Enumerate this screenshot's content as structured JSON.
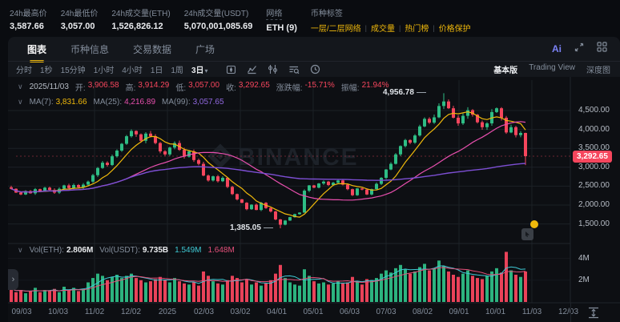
{
  "stats_bar": {
    "items": [
      {
        "label": "24h最高价",
        "value": "3,587.66"
      },
      {
        "label": "24h最低价",
        "value": "3,057.00"
      },
      {
        "label": "24h成交量(ETH)",
        "value": "1,526,826.12"
      },
      {
        "label": "24h成交量(USDT)",
        "value": "5,070,001,085.69"
      },
      {
        "label": "网络",
        "value": "ETH (9)"
      }
    ],
    "tags": {
      "label": "币种标签",
      "links": [
        "一层/二层网络",
        "成交量",
        "热门榜",
        "价格保护"
      ]
    }
  },
  "tabs": {
    "items": [
      "图表",
      "币种信息",
      "交易数据",
      "广场"
    ],
    "active": "图表",
    "ai_label": "Ai"
  },
  "toolbar": {
    "intervals": [
      "分时",
      "1秒",
      "15分钟",
      "1小时",
      "4小时",
      "1日",
      "1周"
    ],
    "selected_interval": "3日",
    "views": [
      "基本版",
      "Trading View",
      "深度图"
    ],
    "active_view": "基本版"
  },
  "legend": {
    "price_row": {
      "date": "2025/11/03",
      "items": [
        {
          "label": "开:",
          "value": "3,906.58"
        },
        {
          "label": "高:",
          "value": "3,914.29"
        },
        {
          "label": "低:",
          "value": "3,057.00"
        },
        {
          "label": "收:",
          "value": "3,292.65"
        },
        {
          "label": "涨跌幅:",
          "value": "-15.71%"
        },
        {
          "label": "振幅:",
          "value": "21.94%"
        }
      ]
    },
    "ma_row": {
      "items": [
        {
          "label": "MA(7):",
          "value": "3,831.66"
        },
        {
          "label": "MA(25):",
          "value": "4,216.89"
        },
        {
          "label": "MA(99):",
          "value": "3,057.65"
        }
      ]
    },
    "vol_row": {
      "pairs": [
        {
          "label": "Vol(ETH):",
          "value": "2.806M"
        },
        {
          "label": "Vol(USDT):",
          "value": "9.735B"
        }
      ],
      "ma_values": [
        "1.549M",
        "1.648M"
      ]
    }
  },
  "chart_data": {
    "type": "candlestick",
    "interval": "3日",
    "x_labels": [
      "09/03",
      "10/03",
      "11/02",
      "12/02",
      "2025",
      "02/03",
      "03/02",
      "04/01",
      "05/01",
      "06/03",
      "07/03",
      "08/02",
      "09/01",
      "10/01",
      "11/03",
      "12/03"
    ],
    "price_ticks": [
      4500,
      4000,
      3500,
      3000,
      2500,
      2000,
      1500
    ],
    "price_tick_labels": [
      "4,500.00",
      "4,000.00",
      "3,500.00",
      "3,000.00",
      "2,500.00",
      "2,000.00",
      "1,500.00"
    ],
    "volume_ticks": [
      {
        "v": 4,
        "label": "4M"
      },
      {
        "v": 2,
        "label": "2M"
      }
    ],
    "current_price": {
      "value": 3292.65,
      "label": "3,292.65"
    },
    "annotations": {
      "high": {
        "index": 90,
        "value": 4956.78,
        "label": "4,956.78"
      },
      "low": {
        "index": 56,
        "value": 1385.05,
        "label": "1,385.05"
      }
    },
    "first_open": 2470,
    "closes": [
      2430,
      2330,
      2280,
      2370,
      2310,
      2420,
      2370,
      2460,
      2400,
      2330,
      2430,
      2520,
      2450,
      2530,
      2470,
      2540,
      2620,
      2790,
      2980,
      3120,
      3060,
      3290,
      3440,
      3620,
      3820,
      3960,
      3870,
      3700,
      3890,
      3820,
      3640,
      3420,
      3340,
      3520,
      3640,
      3460,
      3280,
      3420,
      3190,
      3090,
      2780,
      2650,
      2760,
      2630,
      2720,
      2480,
      2290,
      2150,
      2060,
      1890,
      2010,
      1870,
      2060,
      1920,
      1830,
      1620,
      1480,
      1590,
      1680,
      1760,
      1800,
      2380,
      2520,
      2460,
      2570,
      2620,
      2530,
      2590,
      2650,
      2540,
      2420,
      2260,
      2440,
      2410,
      2280,
      2420,
      2560,
      2720,
      2940,
      3090,
      3340,
      3560,
      3720,
      3650,
      3840,
      4080,
      4280,
      4180,
      4320,
      4620,
      4740,
      4560,
      4310,
      4160,
      4360,
      4510,
      4390,
      4190,
      4060,
      4160,
      4460,
      4560,
      4310,
      3920,
      4060,
      3850,
      3906.58,
      3292.65
    ],
    "volumes": [
      1.2,
      0.9,
      1.1,
      0.8,
      1.0,
      1.3,
      0.9,
      1.1,
      1.0,
      1.2,
      0.9,
      1.4,
      1.1,
      1.3,
      1.0,
      1.2,
      1.8,
      2.2,
      2.6,
      2.4,
      2.0,
      2.3,
      2.5,
      2.2,
      2.4,
      2.6,
      2.2,
      2.0,
      1.8,
      1.9,
      2.1,
      2.3,
      2.0,
      1.8,
      2.2,
      1.9,
      1.7,
      1.6,
      1.8,
      1.5,
      2.8,
      2.4,
      1.9,
      1.7,
      1.6,
      2.0,
      2.4,
      2.2,
      1.8,
      2.1,
      1.6,
      1.8,
      1.5,
      1.7,
      2.0,
      2.6,
      3.4,
      2.2,
      1.8,
      1.6,
      1.5,
      3.0,
      2.4,
      1.9,
      1.7,
      1.8,
      1.6,
      1.7,
      1.9,
      1.7,
      1.8,
      2.3,
      1.9,
      1.6,
      2.1,
      2.0,
      2.2,
      2.6,
      2.9,
      2.7,
      3.1,
      3.4,
      3.0,
      2.6,
      2.8,
      3.2,
      3.5,
      2.9,
      3.1,
      3.8,
      3.3,
      2.8,
      2.5,
      2.3,
      2.6,
      2.9,
      2.4,
      2.2,
      2.1,
      2.4,
      2.8,
      3.1,
      2.7,
      4.6,
      2.9,
      2.5,
      2.3,
      2.8
    ],
    "last_candle": {
      "open": 3906.58,
      "high": 3914.29,
      "low": 3057.0,
      "close": 3292.65
    },
    "ma_windows": [
      7,
      25,
      99
    ],
    "colors": {
      "up": "#2ebd85",
      "down": "#f6465d",
      "ma7": "#f0b90b",
      "ma25": "#e84fae",
      "ma99": "#7d4fd4",
      "vol_ma1": "#3fc9d4",
      "vol_ma2": "#e4507a",
      "grid": "#1c2026",
      "watermark": "#1d2229",
      "background": "#0d0f13",
      "accent": "#f0b90b"
    },
    "watermark_text": "BINANCE"
  }
}
